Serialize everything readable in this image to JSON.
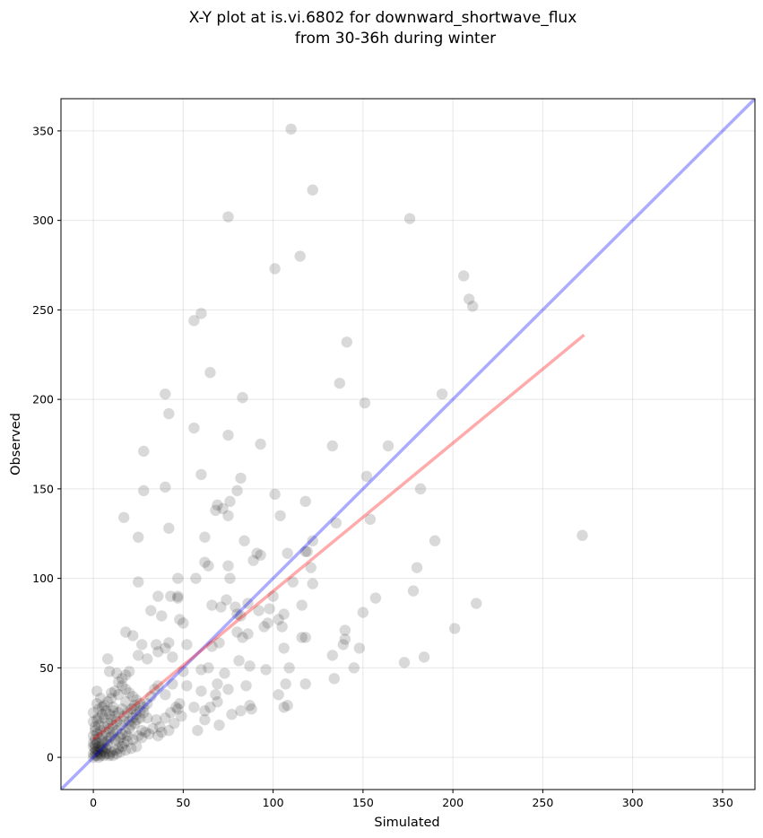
{
  "chart_data": {
    "type": "scatter",
    "title": [
      "X-Y plot at is.vi.6802 for downward_shortwave_flux",
      "from 30-36h during winter"
    ],
    "xlabel": "Simulated",
    "ylabel": "Observed",
    "xlim": [
      -18,
      368
    ],
    "ylim": [
      -18,
      368
    ],
    "xticks": [
      0,
      50,
      100,
      150,
      200,
      250,
      300,
      350
    ],
    "yticks": [
      0,
      50,
      100,
      150,
      200,
      250,
      300,
      350
    ],
    "xtick_labels": [
      "0",
      "50",
      "100",
      "150",
      "200",
      "250",
      "300",
      "350"
    ],
    "ytick_labels": [
      "0",
      "50",
      "100",
      "150",
      "200",
      "250",
      "300",
      "350"
    ],
    "grid": true,
    "point_color": "#000000",
    "point_alpha": 0.15,
    "one_to_one_line": {
      "color": "#0000ff",
      "alpha": 0.33,
      "x": [
        -18,
        368
      ],
      "y": [
        -18,
        368
      ]
    },
    "regression_line": {
      "color": "#ff0000",
      "alpha": 0.33,
      "x": [
        0,
        273
      ],
      "y": [
        10,
        236
      ]
    },
    "points": [
      [
        110,
        351
      ],
      [
        122,
        317
      ],
      [
        75,
        302
      ],
      [
        176,
        301
      ],
      [
        115,
        280
      ],
      [
        101,
        273
      ],
      [
        206,
        269
      ],
      [
        209,
        256
      ],
      [
        211,
        252
      ],
      [
        60,
        248
      ],
      [
        56,
        244
      ],
      [
        141,
        232
      ],
      [
        65,
        215
      ],
      [
        137,
        209
      ],
      [
        40,
        203
      ],
      [
        83,
        201
      ],
      [
        194,
        203
      ],
      [
        151,
        198
      ],
      [
        42,
        192
      ],
      [
        56,
        184
      ],
      [
        75,
        180
      ],
      [
        28,
        171
      ],
      [
        133,
        174
      ],
      [
        164,
        174
      ],
      [
        93,
        175
      ],
      [
        118,
        143
      ],
      [
        152,
        157
      ],
      [
        60,
        158
      ],
      [
        82,
        156
      ],
      [
        40,
        151
      ],
      [
        28,
        149
      ],
      [
        80,
        149
      ],
      [
        182,
        150
      ],
      [
        101,
        147
      ],
      [
        76,
        143
      ],
      [
        69,
        141
      ],
      [
        72,
        139
      ],
      [
        68,
        138
      ],
      [
        17,
        134
      ],
      [
        104,
        135
      ],
      [
        75,
        135
      ],
      [
        135,
        131
      ],
      [
        154,
        133
      ],
      [
        42,
        128
      ],
      [
        25,
        123
      ],
      [
        62,
        123
      ],
      [
        84,
        121
      ],
      [
        122,
        121
      ],
      [
        190,
        121
      ],
      [
        272,
        124
      ],
      [
        118,
        115
      ],
      [
        89,
        110
      ],
      [
        91,
        114
      ],
      [
        93,
        113
      ],
      [
        108,
        114
      ],
      [
        62,
        109
      ],
      [
        64,
        107
      ],
      [
        75,
        107
      ],
      [
        119,
        115
      ],
      [
        47,
        100
      ],
      [
        25,
        98
      ],
      [
        76,
        100
      ],
      [
        121,
        106
      ],
      [
        180,
        106
      ],
      [
        57,
        100
      ],
      [
        43,
        90
      ],
      [
        47,
        90
      ],
      [
        36,
        90
      ],
      [
        47,
        89
      ],
      [
        100,
        90
      ],
      [
        157,
        89
      ],
      [
        122,
        97
      ],
      [
        111,
        98
      ],
      [
        66,
        85
      ],
      [
        71,
        84
      ],
      [
        79,
        84
      ],
      [
        74,
        88
      ],
      [
        86,
        86
      ],
      [
        92,
        82
      ],
      [
        98,
        83
      ],
      [
        106,
        80
      ],
      [
        116,
        85
      ],
      [
        32,
        82
      ],
      [
        38,
        79
      ],
      [
        48,
        77
      ],
      [
        50,
        75
      ],
      [
        80,
        80
      ],
      [
        82,
        79
      ],
      [
        95,
        73
      ],
      [
        103,
        77
      ],
      [
        105,
        73
      ],
      [
        150,
        81
      ],
      [
        178,
        93
      ],
      [
        213,
        86
      ],
      [
        97,
        75
      ],
      [
        118,
        67
      ],
      [
        116,
        67
      ],
      [
        86,
        69
      ],
      [
        83,
        67
      ],
      [
        80,
        70
      ],
      [
        70,
        64
      ],
      [
        66,
        62
      ],
      [
        52,
        63
      ],
      [
        42,
        64
      ],
      [
        35,
        63
      ],
      [
        27,
        63
      ],
      [
        36,
        59
      ],
      [
        40,
        61
      ],
      [
        44,
        56
      ],
      [
        30,
        55
      ],
      [
        25,
        57
      ],
      [
        22,
        68
      ],
      [
        18,
        70
      ],
      [
        140,
        71
      ],
      [
        140,
        66
      ],
      [
        139,
        63
      ],
      [
        148,
        61
      ],
      [
        201,
        72
      ],
      [
        106,
        61
      ],
      [
        133,
        57
      ],
      [
        184,
        56
      ],
      [
        173,
        53
      ],
      [
        145,
        50
      ],
      [
        134,
        44
      ],
      [
        118,
        41
      ],
      [
        107,
        41
      ],
      [
        109,
        50
      ],
      [
        103,
        35
      ],
      [
        106,
        28
      ],
      [
        108,
        29
      ],
      [
        96,
        49
      ],
      [
        87,
        51
      ],
      [
        81,
        54
      ],
      [
        85,
        40
      ],
      [
        73,
        47
      ],
      [
        69,
        41
      ],
      [
        68,
        35
      ],
      [
        69,
        31
      ],
      [
        75,
        38
      ],
      [
        70,
        18
      ],
      [
        58,
        15
      ],
      [
        62,
        21
      ],
      [
        56,
        28
      ],
      [
        60,
        37
      ],
      [
        52,
        40
      ],
      [
        44,
        41
      ],
      [
        40,
        35
      ],
      [
        47,
        27
      ],
      [
        62,
        26
      ],
      [
        82,
        26
      ],
      [
        87,
        29
      ],
      [
        88,
        27
      ],
      [
        77,
        24
      ],
      [
        65,
        28
      ],
      [
        64,
        50
      ],
      [
        60,
        49
      ],
      [
        50,
        48
      ],
      [
        9,
        48
      ],
      [
        20,
        48
      ],
      [
        13,
        47
      ],
      [
        8,
        55
      ],
      [
        10,
        36
      ],
      [
        14,
        35
      ],
      [
        2,
        37
      ],
      [
        4,
        33
      ],
      [
        11,
        28
      ],
      [
        18,
        31
      ],
      [
        22,
        27
      ],
      [
        28,
        25
      ],
      [
        30,
        22
      ],
      [
        35,
        21
      ],
      [
        37,
        17
      ],
      [
        42,
        15
      ],
      [
        45,
        19
      ],
      [
        49,
        23
      ],
      [
        27,
        11
      ],
      [
        29,
        14
      ],
      [
        15,
        18
      ],
      [
        17,
        20
      ],
      [
        0,
        25
      ],
      [
        2,
        21
      ],
      [
        3,
        18
      ],
      [
        1,
        15
      ],
      [
        0,
        12
      ],
      [
        1,
        10
      ],
      [
        2,
        8
      ],
      [
        3,
        6
      ],
      [
        4,
        5
      ],
      [
        5,
        4
      ],
      [
        6,
        3
      ],
      [
        7,
        2
      ],
      [
        1,
        3
      ],
      [
        0,
        2
      ],
      [
        2,
        1
      ],
      [
        0,
        0
      ],
      [
        1,
        1
      ],
      [
        3,
        3
      ],
      [
        4,
        2
      ],
      [
        5,
        6
      ],
      [
        6,
        8
      ],
      [
        8,
        9
      ],
      [
        9,
        11
      ],
      [
        10,
        12
      ],
      [
        11,
        14
      ],
      [
        13,
        15
      ],
      [
        12,
        10
      ],
      [
        14,
        9
      ],
      [
        15,
        11
      ],
      [
        16,
        13
      ],
      [
        18,
        14
      ],
      [
        20,
        16
      ],
      [
        21,
        18
      ],
      [
        23,
        19
      ],
      [
        24,
        21
      ],
      [
        26,
        22
      ],
      [
        19,
        12
      ],
      [
        17,
        8
      ],
      [
        16,
        6
      ],
      [
        14,
        5
      ],
      [
        12,
        4
      ],
      [
        10,
        3
      ],
      [
        9,
        2
      ],
      [
        7,
        5
      ],
      [
        8,
        7
      ],
      [
        5,
        9
      ],
      [
        3,
        11
      ],
      [
        2,
        13
      ],
      [
        1,
        17
      ],
      [
        0,
        20
      ],
      [
        4,
        15
      ],
      [
        6,
        17
      ],
      [
        8,
        19
      ],
      [
        10,
        21
      ],
      [
        12,
        23
      ],
      [
        14,
        25
      ],
      [
        16,
        27
      ],
      [
        19,
        9
      ],
      [
        22,
        10
      ],
      [
        25,
        12
      ],
      [
        27,
        15
      ],
      [
        31,
        13
      ],
      [
        33,
        16
      ],
      [
        36,
        12
      ],
      [
        38,
        14
      ],
      [
        40,
        22
      ],
      [
        43,
        25
      ],
      [
        46,
        28
      ],
      [
        48,
        30
      ],
      [
        24,
        6
      ],
      [
        21,
        5
      ],
      [
        18,
        4
      ],
      [
        15,
        3
      ],
      [
        13,
        2
      ],
      [
        11,
        1
      ],
      [
        9,
        1
      ],
      [
        6,
        1
      ],
      [
        4,
        1
      ],
      [
        3,
        0
      ],
      [
        1,
        5
      ],
      [
        2,
        4
      ],
      [
        0,
        6
      ],
      [
        0,
        8
      ],
      [
        1,
        7
      ],
      [
        5,
        12
      ],
      [
        7,
        14
      ],
      [
        9,
        16
      ],
      [
        11,
        18
      ],
      [
        13,
        20
      ],
      [
        3,
        22
      ],
      [
        5,
        24
      ],
      [
        7,
        26
      ],
      [
        30,
        30
      ],
      [
        32,
        34
      ],
      [
        34,
        38
      ],
      [
        36,
        40
      ],
      [
        16,
        40
      ],
      [
        18,
        38
      ],
      [
        20,
        36
      ],
      [
        22,
        34
      ],
      [
        24,
        32
      ],
      [
        26,
        30
      ],
      [
        28,
        28
      ],
      [
        17,
        23
      ],
      [
        19,
        25
      ],
      [
        21,
        27
      ],
      [
        23,
        29
      ],
      [
        6,
        29
      ],
      [
        8,
        31
      ],
      [
        10,
        33
      ],
      [
        12,
        37
      ],
      [
        14,
        42
      ],
      [
        16,
        44
      ],
      [
        18,
        46
      ],
      [
        20,
        20
      ],
      [
        22,
        22
      ],
      [
        24,
        24
      ],
      [
        26,
        26
      ],
      [
        9,
        24
      ],
      [
        11,
        26
      ],
      [
        3,
        27
      ],
      [
        5,
        28
      ],
      [
        6,
        22
      ],
      [
        2,
        30
      ]
    ]
  }
}
